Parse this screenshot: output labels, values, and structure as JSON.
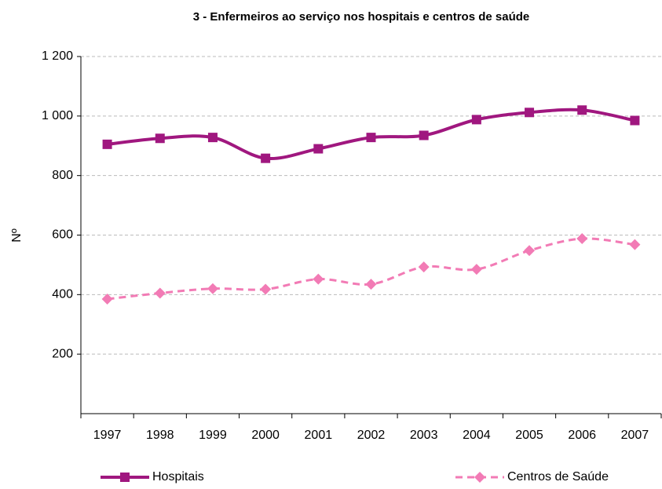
{
  "chart_data": {
    "type": "line",
    "title": "3 - Enfermeiros ao serviço nos hospitais e centros de saúde",
    "ylabel": "Nº",
    "categories": [
      "1997",
      "1998",
      "1999",
      "2000",
      "2001",
      "2002",
      "2003",
      "2004",
      "2005",
      "2006",
      "2007"
    ],
    "series": [
      {
        "name": "Hospitais",
        "color": "#a0177f",
        "dash": false,
        "marker": "square",
        "values": [
          905,
          925,
          928,
          858,
          890,
          928,
          935,
          988,
          1012,
          1020,
          985
        ]
      },
      {
        "name": "Centros de Saúde",
        "color": "#f27bb5",
        "dash": true,
        "marker": "diamond",
        "values": [
          385,
          405,
          420,
          418,
          452,
          435,
          493,
          485,
          548,
          588,
          568
        ]
      }
    ],
    "ylim": [
      0,
      1200
    ],
    "yticks": [
      200,
      400,
      600,
      800,
      {
        "value": 1000,
        "label": "1 000"
      },
      {
        "value": 1200,
        "label": "1 200"
      }
    ],
    "grid": true,
    "smooth": true,
    "legend": "bottom"
  }
}
